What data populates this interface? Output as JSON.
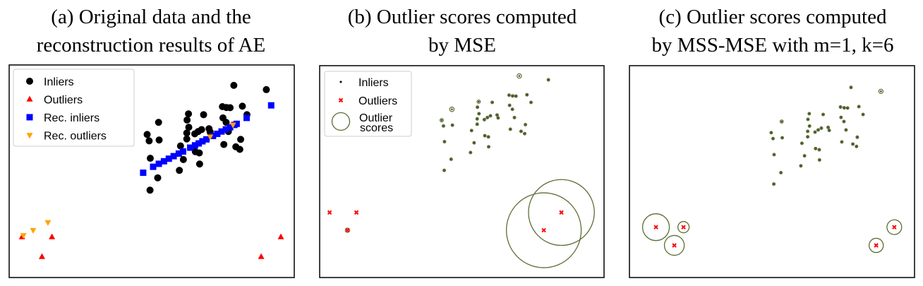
{
  "colors": {
    "inlier": "#000000",
    "outlier": "#ff0000",
    "rec_inlier": "#0000ff",
    "rec_outlier": "#ffa500",
    "score_ring": "#5b6e33",
    "inlier_dot_bc": "#3e4d26"
  },
  "panels": [
    {
      "title_lines": [
        "(a) Original data and the",
        "reconstruction results of AE"
      ]
    },
    {
      "title_lines": [
        "(b) Outlier scores computed",
        "by MSE"
      ]
    },
    {
      "title_lines": [
        "(c) Outlier scores computed",
        "by MSS-MSE with m=1, k=6"
      ]
    }
  ],
  "chart_data": [
    {
      "type": "scatter",
      "title": "(a) Original data and the reconstruction results of AE",
      "axes_visible": false,
      "grid": false,
      "xlim": [
        0,
        100
      ],
      "ylim": [
        0,
        100
      ],
      "legend": {
        "placement": "top-left",
        "entries": [
          "Inliers",
          "Outliers",
          "Rec. inliers",
          "Rec. outliers"
        ]
      },
      "series": [
        {
          "name": "Inliers",
          "marker": "circle",
          "points": [
            [
              78.8,
              90.4
            ],
            [
              90.2,
              88.4
            ],
            [
              74.8,
              80.4
            ],
            [
              76.2,
              80.0
            ],
            [
              77.5,
              79.9
            ],
            [
              81.8,
              80.6
            ],
            [
              62.9,
              77.0
            ],
            [
              68.2,
              76.6
            ],
            [
              83.4,
              76.6
            ],
            [
              52.4,
              73.0
            ],
            [
              62.4,
              74.1
            ],
            [
              75.0,
              75.1
            ],
            [
              76.1,
              73.0
            ],
            [
              63.0,
              70.7
            ],
            [
              48.4,
              67.3
            ],
            [
              49.1,
              64.3
            ],
            [
              52.6,
              64.7
            ],
            [
              62.3,
              68.0
            ],
            [
              65.1,
              67.6
            ],
            [
              66.3,
              68.7
            ],
            [
              67.5,
              69.6
            ],
            [
              70.1,
              70.0
            ],
            [
              70.5,
              68.5
            ],
            [
              76.9,
              68.7
            ],
            [
              81.2,
              65.0
            ],
            [
              62.3,
              65.2
            ],
            [
              75.3,
              62.6
            ],
            [
              79.5,
              61.5
            ],
            [
              80.9,
              60.3
            ],
            [
              60.1,
              61.9
            ],
            [
              65.3,
              59.2
            ],
            [
              66.7,
              58.6
            ],
            [
              49.5,
              56.1
            ],
            [
              61.1,
              55.5
            ],
            [
              66.8,
              53.4
            ],
            [
              59.7,
              50.4
            ],
            [
              52.1,
              46.9
            ],
            [
              49.4,
              41.1
            ]
          ]
        },
        {
          "name": "Outliers",
          "marker": "triangle-up",
          "points": [
            [
              4.5,
              19.1
            ],
            [
              15.0,
              19.1
            ],
            [
              11.5,
              9.8
            ],
            [
              88.4,
              9.8
            ],
            [
              95.3,
              19.1
            ]
          ]
        },
        {
          "name": "Rec. inliers",
          "marker": "square",
          "points": [
            [
              47.0,
              49.3
            ],
            [
              50.5,
              52.1
            ],
            [
              52.5,
              53.5
            ],
            [
              54.3,
              54.7
            ],
            [
              56.0,
              55.9
            ],
            [
              57.7,
              57.1
            ],
            [
              59.5,
              58.3
            ],
            [
              61.0,
              59.3
            ],
            [
              63.5,
              61.1
            ],
            [
              65.2,
              62.2
            ],
            [
              66.5,
              63.1
            ],
            [
              67.8,
              64.1
            ],
            [
              69.2,
              65.0
            ],
            [
              71.5,
              66.6
            ],
            [
              73.0,
              67.6
            ],
            [
              74.5,
              68.7
            ],
            [
              76.0,
              69.7
            ],
            [
              77.5,
              70.7
            ],
            [
              79.0,
              71.8
            ],
            [
              79.8,
              72.3
            ],
            [
              83.3,
              75.1
            ],
            [
              91.9,
              81.0
            ]
          ]
        },
        {
          "name": "Rec. outliers",
          "marker": "triangle-down",
          "points": [
            [
              5.0,
              19.8
            ],
            [
              8.4,
              22.2
            ],
            [
              13.6,
              25.9
            ],
            [
              70.5,
              66.2
            ],
            [
              78.5,
              71.8
            ]
          ]
        }
      ]
    },
    {
      "type": "scatter",
      "title": "(b) Outlier scores computed by MSE",
      "axes_visible": false,
      "grid": false,
      "xlim": [
        0.6,
        112
      ],
      "ylim": [
        -14.9,
        95.8
      ],
      "legend": {
        "placement": "top-left",
        "entries": [
          "Inliers",
          "Outliers",
          "Outlier scores"
        ]
      },
      "points_from": "same data as panel (a) Inliers and Outliers",
      "inlier_scores": [
        0.06,
        0.01,
        0.01,
        0.01,
        0.01,
        0.01,
        0.045,
        0.02,
        0.01,
        0.06,
        0.02,
        0.01,
        0.01,
        0.01,
        0.045,
        0.02,
        0.01,
        0.01,
        0.01,
        0.01,
        0.01,
        0.01,
        0.01,
        0.01,
        0.01,
        0.01,
        0.01,
        0.01,
        0.02,
        0.01,
        0.01,
        0.01,
        0.01,
        0.01,
        0.01,
        0.01,
        0.01,
        0.01
      ],
      "outlier_scores": [
        0.0,
        0.0,
        0.05,
        1.0,
        0.88
      ]
    },
    {
      "type": "scatter",
      "title": "(c) Outlier scores computed by MSS-MSE with m=1, k=6",
      "axes_visible": false,
      "grid": false,
      "xlim": [
        -5.6,
        103.0
      ],
      "ylim": [
        -6.6,
        101.5
      ],
      "legend": null,
      "points_from": "same data as panel (a) Inliers and Outliers",
      "inlier_scores": [
        0.06,
        0.16,
        0.06,
        0.06,
        0.06,
        0.06,
        0.06,
        0.06,
        0.06,
        0.12,
        0.06,
        0.06,
        0.06,
        0.06,
        0.08,
        0.08,
        0.08,
        0.06,
        0.06,
        0.06,
        0.06,
        0.06,
        0.06,
        0.06,
        0.06,
        0.06,
        0.06,
        0.06,
        0.06,
        0.06,
        0.06,
        0.06,
        0.06,
        0.06,
        0.06,
        0.06,
        0.06,
        0.06
      ],
      "outlier_scores": [
        1.0,
        0.42,
        0.74,
        0.53,
        0.55
      ]
    }
  ],
  "legend_b": {
    "inliers": "Inliers",
    "outliers": "Outliers",
    "scores_line1": "Outlier",
    "scores_line2": "scores"
  }
}
